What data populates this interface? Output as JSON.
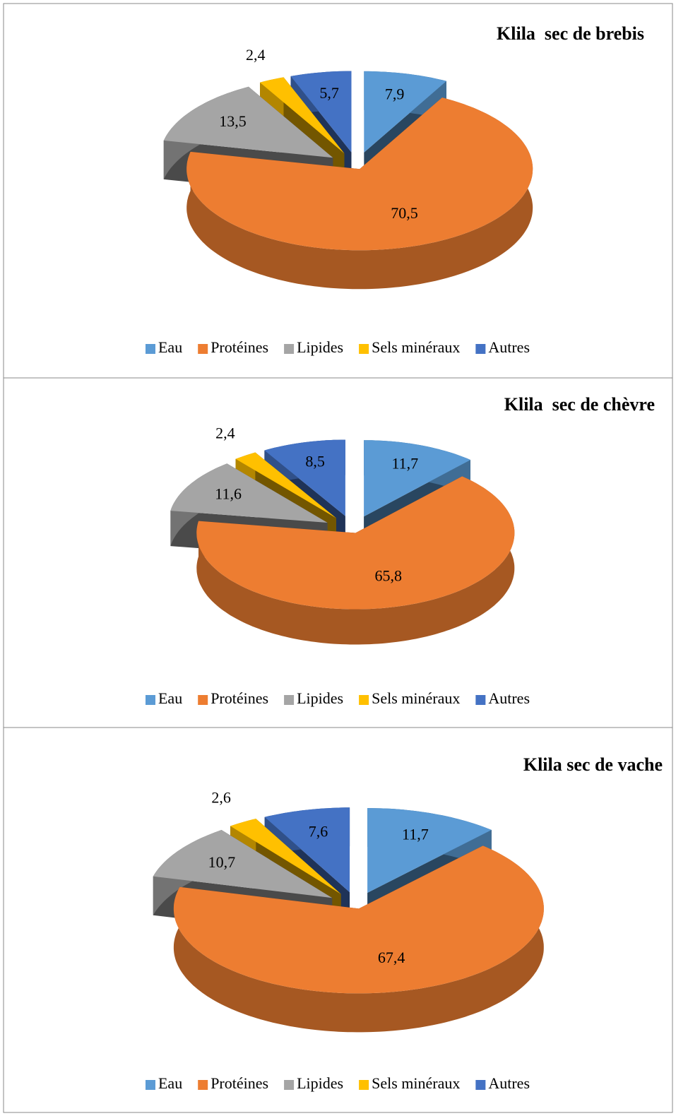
{
  "chart_data": [
    {
      "type": "pie3d",
      "title": "Klila  sec de brebis",
      "categories": [
        "Eau",
        "Protéines",
        "Lipides",
        "Sels minéraux",
        "Autres"
      ],
      "values": [
        7.9,
        70.5,
        13.5,
        2.4,
        5.7
      ],
      "value_labels": [
        "7,9",
        "70,5",
        "13,5",
        "2,4",
        "5,7"
      ],
      "colors": [
        "#5b9bd5",
        "#ed7d31",
        "#a5a5a5",
        "#ffc000",
        "#4472c4"
      ],
      "legend": "bottom"
    },
    {
      "type": "pie3d",
      "title": "Klila  sec de chèvre",
      "categories": [
        "Eau",
        "Protéines",
        "Lipides",
        "Sels minéraux",
        "Autres"
      ],
      "values": [
        11.7,
        65.8,
        11.6,
        2.4,
        8.5
      ],
      "value_labels": [
        "11,7",
        "65,8",
        "11,6",
        "2,4",
        "8,5"
      ],
      "colors": [
        "#5b9bd5",
        "#ed7d31",
        "#a5a5a5",
        "#ffc000",
        "#4472c4"
      ],
      "legend": "bottom"
    },
    {
      "type": "pie3d",
      "title": "Klila sec de vache",
      "categories": [
        "Eau",
        "Protéines",
        "Lipides",
        "Sels minéraux",
        "Autres"
      ],
      "values": [
        11.7,
        67.4,
        10.7,
        2.6,
        7.6
      ],
      "value_labels": [
        "11,7",
        "67,4",
        "10,7",
        "2,6",
        "7,6"
      ],
      "colors": [
        "#5b9bd5",
        "#ed7d31",
        "#a5a5a5",
        "#ffc000",
        "#4472c4"
      ],
      "legend": "bottom"
    }
  ]
}
